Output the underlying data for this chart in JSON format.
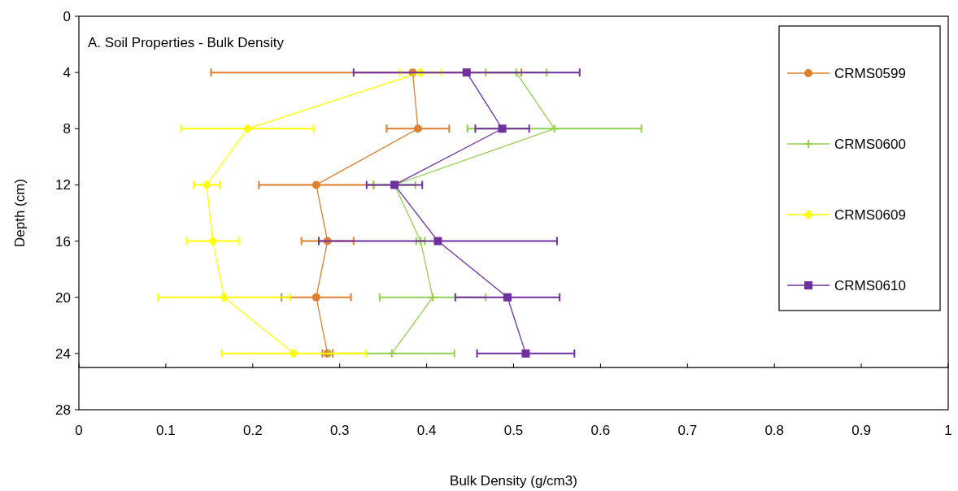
{
  "chart_data": {
    "type": "line",
    "title": "A. Soil Properties - Bulk Density",
    "xlabel": "Bulk Density (g/cm3)",
    "ylabel": "Depth (cm)",
    "xlim": [
      0,
      1
    ],
    "xticks": [
      0,
      0.1,
      0.2,
      0.3,
      0.4,
      0.5,
      0.6,
      0.7,
      0.8,
      0.9,
      1
    ],
    "ylim": [
      28,
      0
    ],
    "yticks": [
      0,
      4,
      8,
      12,
      16,
      20,
      24,
      28
    ],
    "grid": false,
    "legend": "right",
    "ref_lines": [
      {
        "axis": "y",
        "value": 25,
        "color": "#000000"
      }
    ],
    "series": [
      {
        "name": "CRMS0599",
        "color": "#e07f30",
        "marker": "circle",
        "x": [
          0.384,
          0.39,
          0.273,
          0.286,
          0.273,
          0.286
        ],
        "values": [
          4,
          8,
          12,
          16,
          20,
          24
        ],
        "xerrors": [
          [
            0.152,
            0.509
          ],
          0.036,
          0.066,
          0.03,
          0.04,
          0.006
        ]
      },
      {
        "name": "CRMS0600",
        "color": "#92d050",
        "marker": "cross",
        "x": [
          0.503,
          0.547,
          0.363,
          0.393,
          0.407,
          0.36
        ],
        "values": [
          4,
          8,
          12,
          16,
          20,
          24
        ],
        "xerrors": [
          0.035,
          0.1,
          0.024,
          0.005,
          0.061,
          0.072
        ]
      },
      {
        "name": "CRMS0609",
        "color": "#ffff00",
        "marker": "diamond",
        "x": [
          0.393,
          0.194,
          0.147,
          0.154,
          0.167,
          0.247
        ],
        "values": [
          4,
          8,
          12,
          16,
          20,
          24
        ],
        "xerrors": [
          0.024,
          0.076,
          0.015,
          0.03,
          0.076,
          0.083
        ]
      },
      {
        "name": "CRMS0610",
        "color": "#7030a0",
        "marker": "square",
        "x": [
          0.446,
          0.487,
          0.363,
          0.413,
          0.493,
          0.514
        ],
        "values": [
          4,
          8,
          12,
          16,
          20,
          24
        ],
        "xerrors": [
          0.13,
          0.031,
          0.032,
          0.137,
          0.06,
          0.056
        ]
      }
    ]
  }
}
